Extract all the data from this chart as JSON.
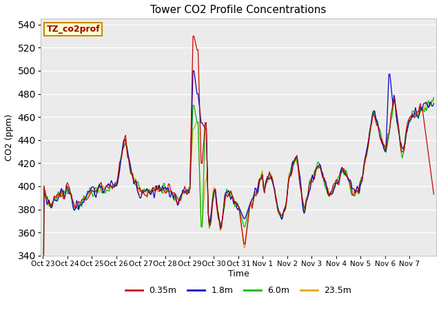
{
  "title": "Tower CO2 Profile Concentrations",
  "xlabel": "Time",
  "ylabel": "CO2 (ppm)",
  "ylim": [
    340,
    545
  ],
  "yticks": [
    340,
    360,
    380,
    400,
    420,
    440,
    460,
    480,
    500,
    520,
    540
  ],
  "bg_color": "#ebebeb",
  "fig_color": "#ffffff",
  "line_colors": [
    "#cc0000",
    "#0000cc",
    "#00bb00",
    "#ddaa00"
  ],
  "line_labels": [
    "0.35m",
    "1.8m",
    "6.0m",
    "23.5m"
  ],
  "legend_label": "TZ_co2prof",
  "legend_label_color": "#990000",
  "legend_box_color": "#ffffcc",
  "legend_box_edge": "#cc8800",
  "xtick_labels": [
    "Oct 23",
    "Oct 24",
    "Oct 25",
    "Oct 26",
    "Oct 27",
    "Oct 28",
    "Oct 29",
    "Oct 30",
    "Oct 31",
    "Nov 1",
    "Nov 2",
    "Nov 3",
    "Nov 4",
    "Nov 5",
    "Nov 6",
    "Nov 7"
  ]
}
